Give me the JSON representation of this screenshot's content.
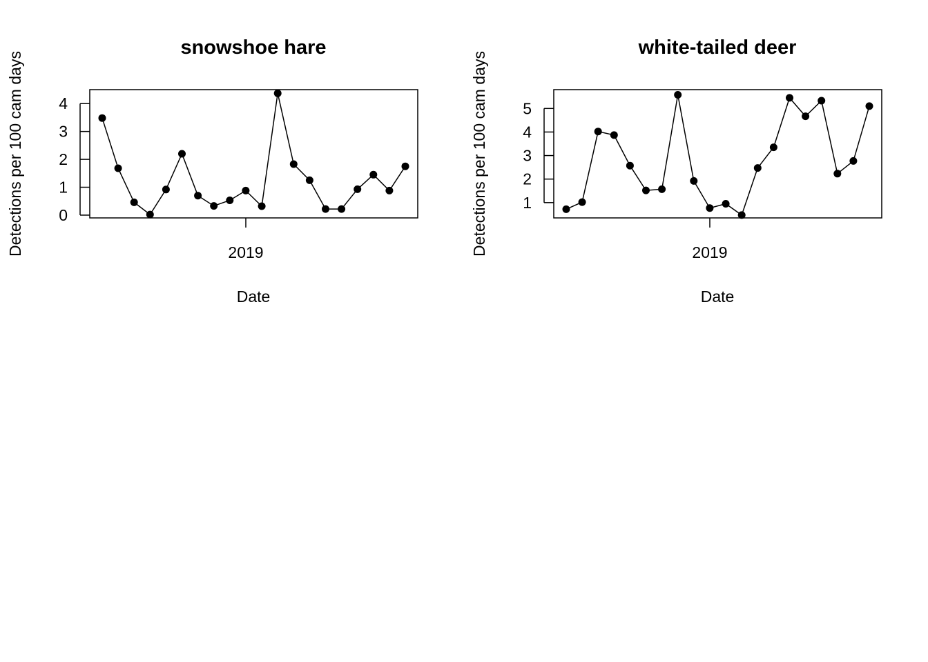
{
  "chart_data": [
    {
      "type": "line",
      "title": "snowshoe hare",
      "xlabel": "Date",
      "ylabel": "Detections per 100 cam days",
      "x_tick_labels": [
        "2019"
      ],
      "y_ticks": [
        0,
        1,
        2,
        3,
        4
      ],
      "ylim": [
        -0.1,
        4.5
      ],
      "grid": false,
      "markers": "filled circles",
      "series": [
        {
          "values": [
            3.48,
            1.68,
            0.46,
            0.02,
            0.92,
            2.2,
            0.7,
            0.33,
            0.53,
            0.88,
            0.32,
            4.37,
            1.83,
            1.25,
            0.22,
            0.22,
            0.93,
            1.45,
            0.88,
            1.75
          ]
        }
      ]
    },
    {
      "type": "line",
      "title": "white-tailed deer",
      "xlabel": "Date",
      "ylabel": "Detections per 100 cam days",
      "x_tick_labels": [
        "2019"
      ],
      "y_ticks": [
        1,
        2,
        3,
        4,
        5
      ],
      "ylim": [
        0.35,
        5.8
      ],
      "grid": false,
      "markers": "filled circles",
      "series": [
        {
          "values": [
            0.72,
            1.02,
            4.02,
            3.87,
            2.57,
            1.52,
            1.57,
            5.58,
            1.92,
            0.77,
            0.95,
            0.47,
            2.47,
            3.35,
            5.45,
            4.67,
            5.33,
            2.23,
            2.77,
            5.1
          ]
        }
      ]
    }
  ],
  "colors": {
    "line": "#000000",
    "marker": "#000000",
    "background": "#ffffff"
  }
}
